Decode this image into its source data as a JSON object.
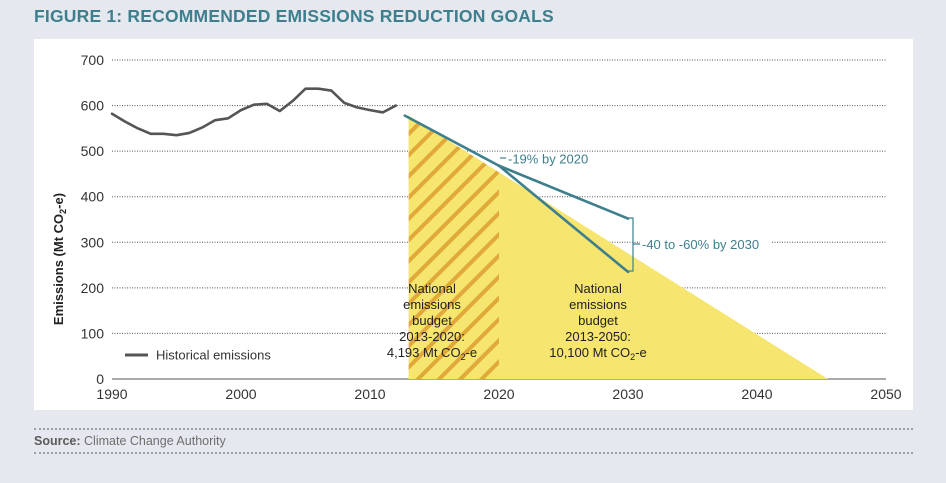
{
  "figure": {
    "title_prefix": "FIGURE 1:",
    "title_text": " RECOMMENDED EMISSIONS REDUCTION GOALS"
  },
  "source": {
    "label": "Source:",
    "text": " Climate Change Authority"
  },
  "colors": {
    "teal": "#3e7f8d",
    "line": "#555555",
    "yellow": "#f6e56f",
    "hatch": "#e0a93a",
    "grid": "#555555"
  },
  "chart_data": {
    "type": "line",
    "title": "Recommended emissions reduction goals",
    "ylabel": "Emissions (Mt CO2-e)",
    "ylabel_parts": {
      "main": "Emissions (Mt CO",
      "sub": "2",
      "end": "-e)"
    },
    "xlabel": "",
    "xlim": [
      1990,
      2050
    ],
    "ylim": [
      0,
      700
    ],
    "xticks": [
      1990,
      2000,
      2010,
      2020,
      2030,
      2040,
      2050
    ],
    "yticks": [
      0,
      100,
      200,
      300,
      400,
      500,
      600,
      700
    ],
    "grid": true,
    "legend": {
      "position": "bottom-left",
      "label": "Historical emissions"
    },
    "series": [
      {
        "name": "Historical emissions",
        "x": [
          1990,
          1991,
          1992,
          1993,
          1994,
          1995,
          1996,
          1997,
          1998,
          1999,
          2000,
          2001,
          2002,
          2003,
          2004,
          2005,
          2006,
          2007,
          2008,
          2009,
          2010,
          2011,
          2012
        ],
        "y": [
          582,
          565,
          550,
          538,
          538,
          535,
          540,
          552,
          568,
          572,
          590,
          602,
          604,
          588,
          610,
          637,
          637,
          633,
          606,
          596,
          590,
          585,
          600
        ]
      },
      {
        "name": "Trajectory to -19% by 2020",
        "x": [
          2012.7,
          2020
        ],
        "y": [
          578,
          468
        ]
      },
      {
        "name": "Trajectory -40% by 2030",
        "x": [
          2020,
          2030
        ],
        "y": [
          468,
          352
        ]
      },
      {
        "name": "Trajectory -60% by 2030",
        "x": [
          2020,
          2030
        ],
        "y": [
          468,
          235
        ]
      }
    ],
    "areas": [
      {
        "name": "National emissions budget 2013-2050",
        "points": [
          [
            2013,
            578
          ],
          [
            2045.5,
            0
          ],
          [
            2013,
            0
          ]
        ]
      },
      {
        "name": "National emissions budget 2013-2020",
        "x_range": [
          2013,
          2020
        ]
      }
    ],
    "annotations": {
      "target_2020": "-19% by 2020",
      "target_2030": "-40 to -60% by 2030",
      "budget_2020": {
        "l1": "National",
        "l2": "emissions",
        "l3": "budget",
        "l4": "2013-2020:",
        "l5_main": "4,193 Mt CO",
        "l5_sub": "2",
        "l5_end": "-e"
      },
      "budget_2050": {
        "l1": "National",
        "l2": "emissions",
        "l3": "budget",
        "l4": "2013-2050:",
        "l5_main": "10,100 Mt CO",
        "l5_sub": "2",
        "l5_end": "-e"
      }
    }
  }
}
